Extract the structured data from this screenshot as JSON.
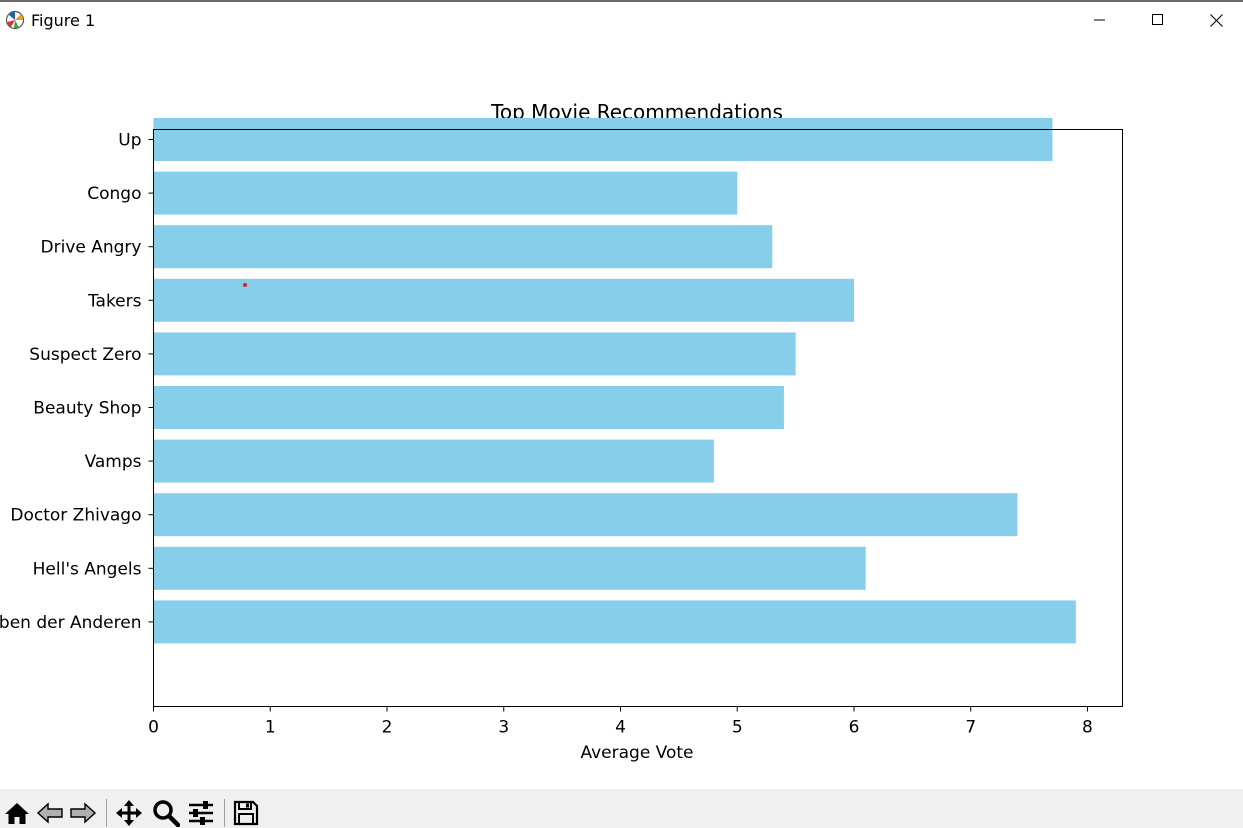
{
  "window": {
    "title": "Figure 1",
    "icons": [
      "matplotlib-icon",
      "minimize-icon",
      "maximize-icon",
      "close-icon"
    ]
  },
  "toolbar": {
    "buttons": [
      "home-icon",
      "back-arrow-icon",
      "forward-arrow-icon",
      "pan-icon",
      "zoom-icon",
      "configure-subplots-icon",
      "save-icon"
    ]
  },
  "chart_data": {
    "type": "bar",
    "orientation": "horizontal",
    "title": "Top Movie Recommendations",
    "xlabel": "Average Vote",
    "ylabel": "",
    "categories": [
      "Up",
      "Congo",
      "Drive Angry",
      "Takers",
      "Suspect Zero",
      "Beauty Shop",
      "Vamps",
      "Doctor Zhivago",
      "Hell's Angels",
      "Das Leben der Anderen"
    ],
    "values": [
      7.7,
      5.0,
      5.3,
      6.0,
      5.5,
      5.4,
      4.8,
      7.4,
      6.1,
      7.9
    ],
    "xlim": [
      0,
      8.3
    ],
    "xticks": [
      "0",
      "1",
      "2",
      "3",
      "4",
      "5",
      "6",
      "7",
      "8"
    ],
    "bar_color": "#87ceeb",
    "grid": false
  }
}
